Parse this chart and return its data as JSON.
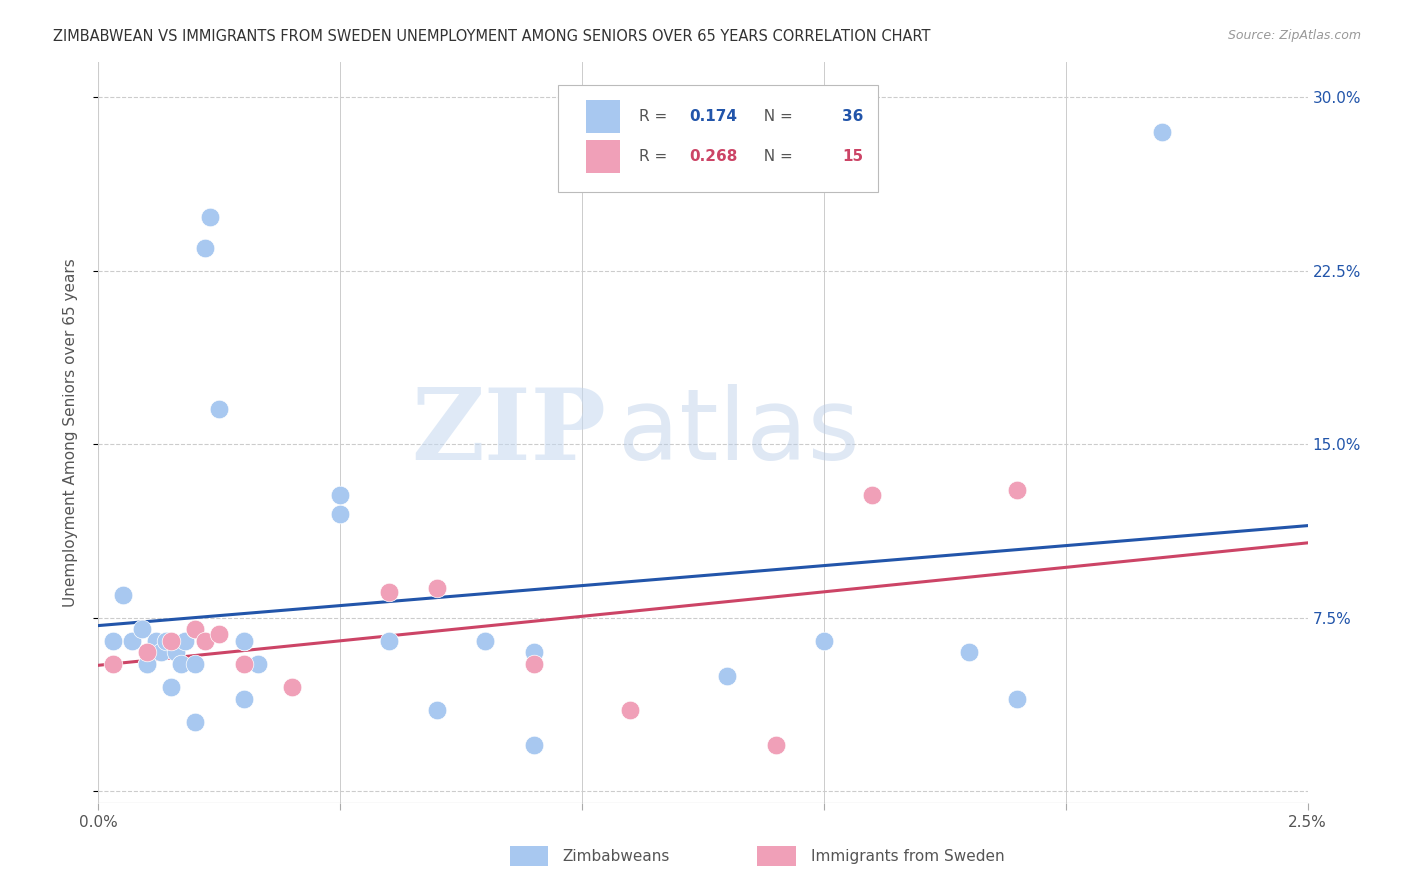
{
  "title": "ZIMBABWEAN VS IMMIGRANTS FROM SWEDEN UNEMPLOYMENT AMONG SENIORS OVER 65 YEARS CORRELATION CHART",
  "source": "Source: ZipAtlas.com",
  "ylabel": "Unemployment Among Seniors over 65 years",
  "R1": 0.174,
  "N1": 36,
  "R2": 0.268,
  "N2": 15,
  "x_min": 0.0,
  "x_max": 0.025,
  "y_min": -0.005,
  "y_max": 0.315,
  "yticks": [
    0.0,
    0.075,
    0.15,
    0.225,
    0.3
  ],
  "ytick_labels": [
    "",
    "7.5%",
    "15.0%",
    "22.5%",
    "30.0%"
  ],
  "xticks": [
    0.0,
    0.005,
    0.01,
    0.015,
    0.02,
    0.025
  ],
  "xtick_labels_shown": [
    "0.0%",
    "",
    "",
    "",
    "",
    "2.5%"
  ],
  "color_blue": "#a8c8f0",
  "color_pink": "#f0a0b8",
  "line_blue": "#2255aa",
  "line_pink": "#cc4466",
  "legend_label1": "Zimbabweans",
  "legend_label2": "Immigrants from Sweden",
  "watermark_zip": "ZIP",
  "watermark_atlas": "atlas",
  "blue_x": [
    0.0003,
    0.0005,
    0.0007,
    0.0009,
    0.001,
    0.001,
    0.0012,
    0.0013,
    0.0014,
    0.0015,
    0.0016,
    0.0017,
    0.0018,
    0.002,
    0.002,
    0.002,
    0.0022,
    0.0023,
    0.0025,
    0.003,
    0.003,
    0.003,
    0.0033,
    0.005,
    0.005,
    0.006,
    0.007,
    0.008,
    0.008,
    0.009,
    0.009,
    0.013,
    0.015,
    0.018,
    0.019,
    0.022
  ],
  "blue_y": [
    0.065,
    0.085,
    0.065,
    0.07,
    0.055,
    0.055,
    0.065,
    0.06,
    0.065,
    0.045,
    0.06,
    0.055,
    0.065,
    0.03,
    0.055,
    0.07,
    0.235,
    0.248,
    0.165,
    0.065,
    0.04,
    0.065,
    0.055,
    0.12,
    0.128,
    0.065,
    0.035,
    0.065,
    0.065,
    0.02,
    0.06,
    0.05,
    0.065,
    0.06,
    0.04,
    0.285
  ],
  "pink_x": [
    0.0003,
    0.001,
    0.0015,
    0.002,
    0.0022,
    0.0025,
    0.003,
    0.004,
    0.006,
    0.007,
    0.009,
    0.011,
    0.014,
    0.016,
    0.019
  ],
  "pink_y": [
    0.055,
    0.06,
    0.065,
    0.07,
    0.065,
    0.068,
    0.055,
    0.045,
    0.086,
    0.088,
    0.055,
    0.035,
    0.02,
    0.128,
    0.13
  ]
}
